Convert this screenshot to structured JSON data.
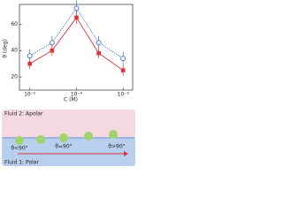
{
  "chart_data": {
    "type": "line",
    "x_label": "C (M)",
    "y_label": "θ (deg)",
    "log_x": true,
    "x": [
      1e-05,
      3e-05,
      0.0001,
      0.0003,
      0.001
    ],
    "xlim": [
      6e-06,
      0.0016
    ],
    "xticks": [
      {
        "value": 1e-05,
        "label": "10⁻⁵"
      },
      {
        "value": 0.0001,
        "label": "10⁻⁴"
      },
      {
        "value": 0.001,
        "label": "10⁻³"
      }
    ],
    "ylim": [
      10,
      75
    ],
    "yticks": [
      20,
      40,
      60
    ],
    "series": [
      {
        "color": "#3b6bc9",
        "marker": "open-circle",
        "line_style": "dotted",
        "values": [
          36,
          46,
          72,
          46,
          34
        ],
        "errors": [
          5,
          5,
          6,
          5,
          5
        ]
      },
      {
        "color": "#d8343a",
        "marker": "square",
        "line_style": "solid",
        "values": [
          30,
          40,
          65,
          38,
          25
        ],
        "errors": [
          4,
          4,
          5,
          4,
          4
        ]
      }
    ]
  },
  "diagram": {
    "top_fluid": "Fluid 2: Apolar",
    "bottom_fluid": "Fluid 1: Polar",
    "angles": [
      "θ<90°",
      "θ=90°",
      "θ>90°"
    ]
  }
}
